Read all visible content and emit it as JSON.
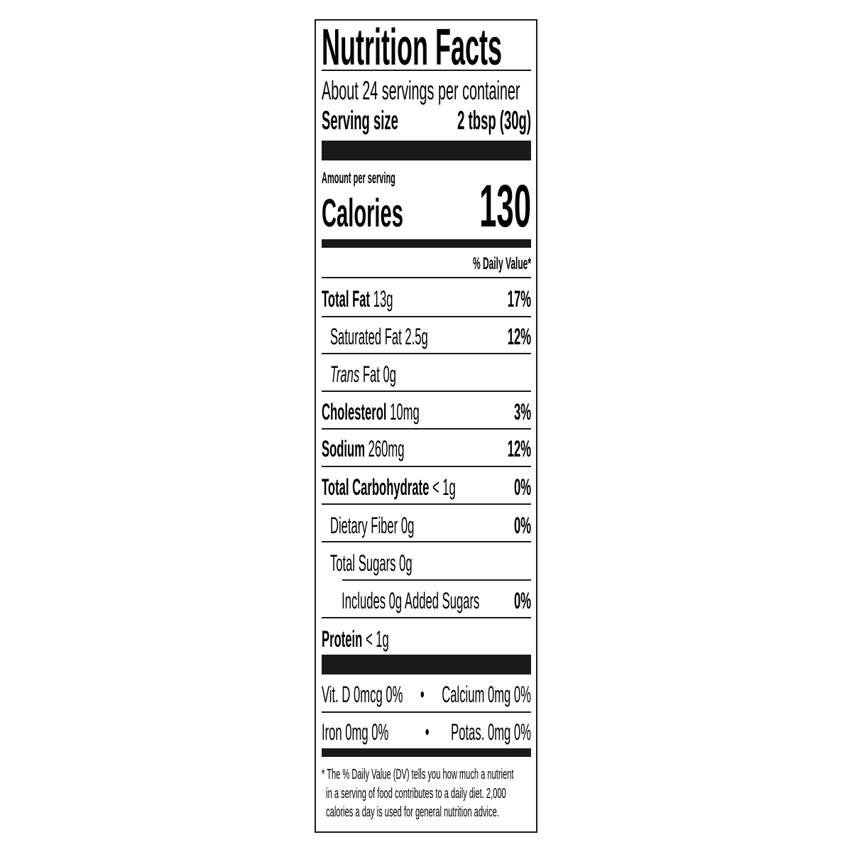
{
  "title": "Nutrition Facts",
  "servings_per_container": "About 24 servings per container",
  "serving_size": {
    "label": "Serving size",
    "value": "2 tbsp (30g)"
  },
  "amount_per_serving": "Amount per serving",
  "calories": {
    "label": "Calories",
    "value": "130"
  },
  "daily_value_header": "% Daily Value*",
  "nutrients": [
    {
      "name": "Total Fat",
      "amount": "13g",
      "dv": "17%"
    },
    {
      "name": "Saturated Fat",
      "amount": "2.5g",
      "dv": "12%"
    },
    {
      "name": "Trans",
      "name_suffix": "Fat",
      "amount": "0g",
      "dv": ""
    },
    {
      "name": "Cholesterol",
      "amount": "10mg",
      "dv": "3%"
    },
    {
      "name": "Sodium",
      "amount": "260mg",
      "dv": "12%"
    },
    {
      "name": "Total Carbohydrate",
      "amount": "< 1g",
      "dv": "0%"
    },
    {
      "name": "Dietary Fiber",
      "amount": "0g",
      "dv": "0%"
    },
    {
      "name": "Total Sugars",
      "amount": "0g",
      "dv": ""
    },
    {
      "name": "Includes 0g Added Sugars",
      "amount": "",
      "dv": "0%"
    },
    {
      "name": "Protein",
      "amount": "< 1g",
      "dv": ""
    }
  ],
  "vitamins": [
    {
      "left": "Vit. D 0mcg 0%",
      "sep": "•",
      "right": "Calcium 0mg 0%"
    },
    {
      "left": "Iron 0mg 0%",
      "sep": "•",
      "right": "Potas. 0mg 0%"
    }
  ],
  "footnote": [
    "* The % Daily Value (DV) tells you how much a nutrient",
    "in a serving of food contributes to a daily diet. 2,000",
    "calories a day is used for general nutrition advice."
  ]
}
